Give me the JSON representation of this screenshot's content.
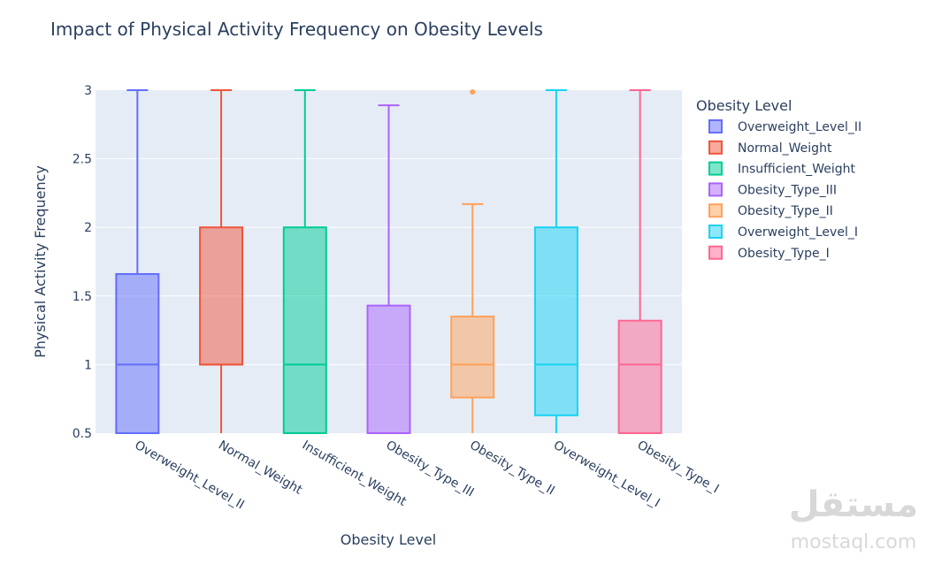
{
  "chart_data": {
    "type": "box",
    "title": "Impact of Physical Activity Frequency on Obesity Levels",
    "xlabel": "Obesity Level",
    "ylabel": "Physical Activity Frequency",
    "ylim": [
      0.5,
      3
    ],
    "yticks": [
      "0.5",
      "1",
      "1.5",
      "2",
      "2.5",
      "3"
    ],
    "grid": true,
    "legend": {
      "title": "Obesity Level",
      "placement": "right"
    },
    "categories": [
      "Overweight_Level_II",
      "Normal_Weight",
      "Insufficient_Weight",
      "Obesity_Type_III",
      "Obesity_Type_II",
      "Overweight_Level_I",
      "Obesity_Type_I"
    ],
    "series": [
      {
        "name": "Overweight_Level_II",
        "color": "#636efa",
        "min": 0,
        "q1": 0,
        "median": 1,
        "q3": 1.66,
        "max": 3,
        "outliers": []
      },
      {
        "name": "Normal_Weight",
        "color": "#EF553B",
        "min": 0,
        "q1": 1,
        "median": 1,
        "q3": 2,
        "max": 3,
        "outliers": []
      },
      {
        "name": "Insufficient_Weight",
        "color": "#00cc96",
        "min": 0,
        "q1": 0,
        "median": 1,
        "q3": 2,
        "max": 3,
        "outliers": []
      },
      {
        "name": "Obesity_Type_III",
        "color": "#ab63fa",
        "min": 0,
        "q1": 0,
        "median": 0,
        "q3": 1.43,
        "max": 2.89,
        "outliers": []
      },
      {
        "name": "Obesity_Type_II",
        "color": "#FFA15A",
        "min": 0,
        "q1": 0.76,
        "median": 1,
        "q3": 1.35,
        "max": 2.17,
        "outliers": [
          3
        ]
      },
      {
        "name": "Overweight_Level_I",
        "color": "#19d3f3",
        "min": 0,
        "q1": 0.63,
        "median": 1,
        "q3": 2,
        "max": 3,
        "outliers": []
      },
      {
        "name": "Obesity_Type_I",
        "color": "#FF6692",
        "color_fill": "#FF6692",
        "min": 0,
        "q1": 0,
        "median": 1,
        "q3": 1.32,
        "max": 3,
        "outliers": []
      }
    ]
  },
  "watermark": {
    "arabic": "مستقل",
    "latin": "mostaql.com"
  }
}
